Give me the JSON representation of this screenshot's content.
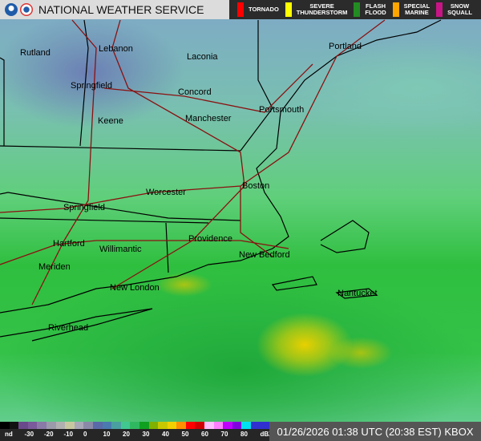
{
  "header": {
    "title": "NATIONAL WEATHER SERVICE",
    "logos": [
      "noaa-logo",
      "nws-logo"
    ]
  },
  "warnings": [
    {
      "label1": "TORNADO",
      "label2": "",
      "color": "#ff0000"
    },
    {
      "label1": "SEVERE",
      "label2": "THUNDERSTORM",
      "color": "#ffff00"
    },
    {
      "label1": "FLASH",
      "label2": "FLOOD",
      "color": "#228b22"
    },
    {
      "label1": "SPECIAL",
      "label2": "MARINE",
      "color": "#ffa500"
    },
    {
      "label1": "SNOW",
      "label2": "SQUALL",
      "color": "#c71585"
    }
  ],
  "cities": [
    "Rutland",
    "Lebanon",
    "Laconia",
    "Portland",
    "Springfield",
    "Concord",
    "Portsmouth",
    "Keene",
    "Manchester",
    "Worcester",
    "Boston",
    "Springfield",
    "Providence",
    "Hartford",
    "Willimantic",
    "New Bedford",
    "Meriden",
    "New London",
    "Nantucket",
    "Riverhead"
  ],
  "scale": {
    "ticks": [
      "nd",
      "-30",
      "-20",
      "-10",
      "0",
      "10",
      "20",
      "30",
      "40",
      "50",
      "60",
      "70",
      "80",
      "dBZ"
    ],
    "colors": [
      "#000",
      "#111",
      "#6a4a8a",
      "#7a5a9a",
      "#8a7aa8",
      "#9a9aaa",
      "#b0b0b0",
      "#c8c8a0",
      "#a8a8b8",
      "#8a8aa8",
      "#5a6aa8",
      "#4a7ab0",
      "#4aa0a0",
      "#40c890",
      "#30b860",
      "#10a020",
      "#80b000",
      "#c8c800",
      "#f0d000",
      "#ff9000",
      "#ff0000",
      "#d00000",
      "#ffc0ff",
      "#ff80ff",
      "#c000ff",
      "#8000e0",
      "#00e0f0",
      "#3030d0",
      "#3030d0"
    ]
  },
  "timestamp": "01/26/2026 01:38 UTC (20:38 EST) KBOX"
}
